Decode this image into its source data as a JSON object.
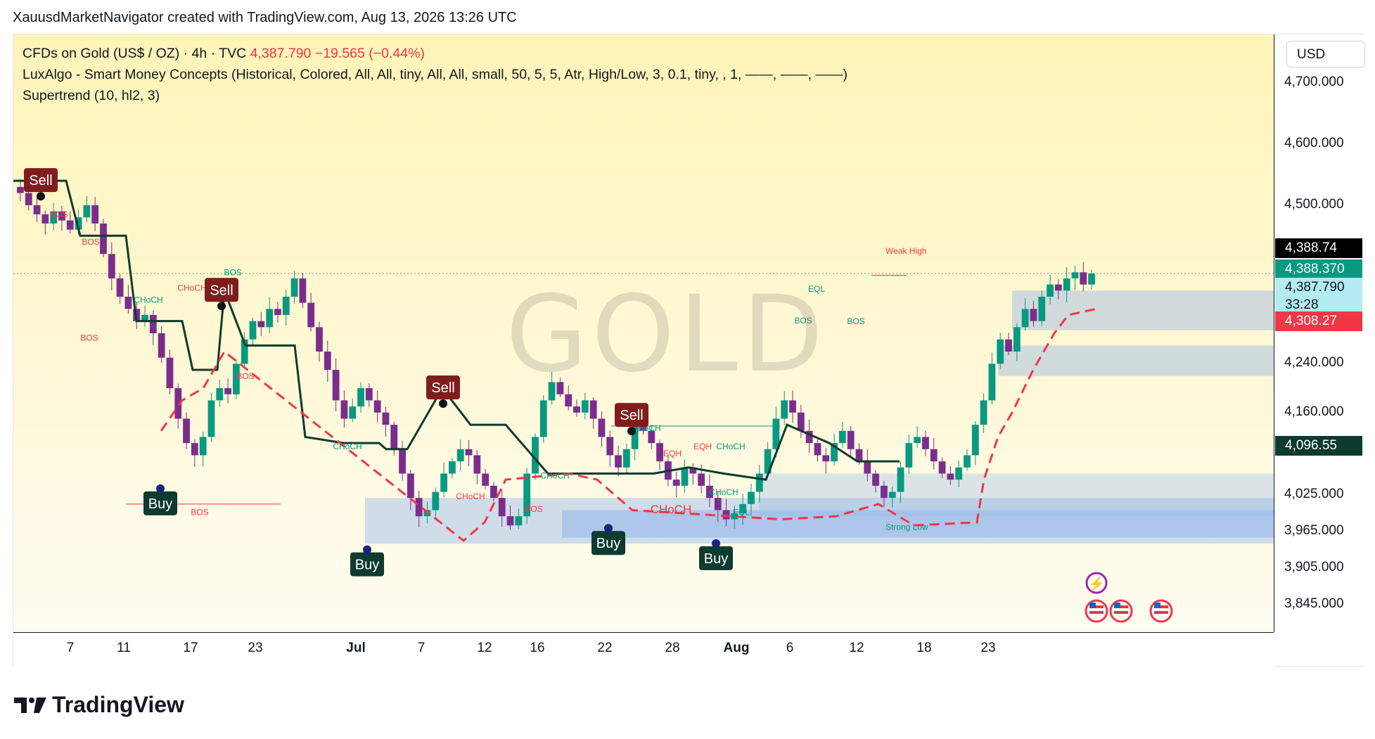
{
  "header": {
    "text": "XauusdMarketNavigator created with TradingView.com, Aug 13, 2026 13:26 UTC"
  },
  "legend": {
    "line1_symbol": "CFDs on Gold (US$ / OZ) · 4h · TVC",
    "line1_price": "4,387.790",
    "line1_change": "−19.565 (−0.44%)",
    "line2": "LuxAlgo - Smart Money Concepts (Historical, Colored, All, All, tiny, All, All, small, 50, 5, 5, Atr, High/Low, 3, 0.1, tiny, , 1, ——, ——, ——)",
    "line3": "Supertrend (10, hl2, 3)"
  },
  "watermark": "GOLD",
  "currency_button": "USD",
  "colors": {
    "up": "#089981",
    "down": "#f23645",
    "candle": "#7b2d8e",
    "supertrend_down": "#0d3b2e",
    "supertrend_up": "#f23645",
    "bos_bear": "#f23645",
    "bos_bull": "#089981"
  },
  "chart_data": {
    "type": "candlestick",
    "title": "CFDs on Gold (US$ / OZ) · 4h · TVC",
    "ylim": [
      3800,
      4780
    ],
    "y_ticks": [
      "4,700.000",
      "4,600.000",
      "4,500.000",
      "4,240.000",
      "4,160.000",
      "4,025.000",
      "3,965.000",
      "3,905.000",
      "3,845.000"
    ],
    "x_ticks": [
      {
        "label": "7",
        "bold": false
      },
      {
        "label": "11",
        "bold": false
      },
      {
        "label": "17",
        "bold": false
      },
      {
        "label": "23",
        "bold": false
      },
      {
        "label": "Jul",
        "bold": true
      },
      {
        "label": "7",
        "bold": false
      },
      {
        "label": "12",
        "bold": false
      },
      {
        "label": "16",
        "bold": false
      },
      {
        "label": "22",
        "bold": false
      },
      {
        "label": "28",
        "bold": false
      },
      {
        "label": "Aug",
        "bold": true
      },
      {
        "label": "6",
        "bold": false
      },
      {
        "label": "12",
        "bold": false
      },
      {
        "label": "18",
        "bold": false
      },
      {
        "label": "23",
        "bold": false
      }
    ],
    "price_badges": [
      {
        "label": "4,388.74",
        "bg": "#000000"
      },
      {
        "label": "4,388.370",
        "bg": "#089981"
      },
      {
        "label": "4,387.790",
        "sub": "33:28",
        "bg": "#b2ebf2",
        "fg": "#131722"
      },
      {
        "label": "4,308.27",
        "bg": "#f23645"
      },
      {
        "label": "4,096.55",
        "bg": "#0d3b2e"
      }
    ],
    "close_series": [
      4520,
      4500,
      4485,
      4470,
      4490,
      4475,
      4460,
      4480,
      4500,
      4470,
      4420,
      4380,
      4350,
      4330,
      4310,
      4320,
      4290,
      4250,
      4200,
      4150,
      4110,
      4090,
      4120,
      4180,
      4200,
      4190,
      4240,
      4280,
      4310,
      4300,
      4330,
      4320,
      4350,
      4380,
      4340,
      4300,
      4260,
      4230,
      4180,
      4150,
      4170,
      4200,
      4180,
      4160,
      4140,
      4100,
      4060,
      4020,
      3990,
      4000,
      4030,
      4060,
      4080,
      4100,
      4090,
      4060,
      4040,
      4020,
      3990,
      3975,
      3990,
      4060,
      4120,
      4180,
      4210,
      4190,
      4170,
      4160,
      4180,
      4150,
      4120,
      4090,
      4070,
      4100,
      4140,
      4130,
      4110,
      4080,
      4050,
      4040,
      4070,
      4060,
      4040,
      4020,
      4000,
      3985,
      3995,
      4010,
      4030,
      4060,
      4100,
      4150,
      4180,
      4160,
      4130,
      4110,
      4090,
      4080,
      4110,
      4130,
      4100,
      4080,
      4060,
      4040,
      4020,
      4030,
      4070,
      4110,
      4120,
      4100,
      4080,
      4060,
      4050,
      4070,
      4090,
      4140,
      4180,
      4240,
      4280,
      4260,
      4300,
      4330,
      4310,
      4350,
      4370,
      4360,
      4380,
      4390,
      4370,
      4388
    ],
    "signals": [
      {
        "type": "Sell",
        "label": "Sell"
      },
      {
        "type": "Buy",
        "label": "Buy"
      },
      {
        "type": "Sell",
        "label": "Sell"
      },
      {
        "type": "Buy",
        "label": "Buy"
      },
      {
        "type": "Sell",
        "label": "Sell"
      },
      {
        "type": "Buy",
        "label": "Buy"
      },
      {
        "type": "Sell",
        "label": "Sell"
      },
      {
        "type": "Buy",
        "label": "Buy"
      }
    ],
    "structure_labels": [
      "BOS",
      "BOS",
      "BOS",
      "CHoCH",
      "CHoCH",
      "BOS",
      "BOS",
      "BOS",
      "CHoCH",
      "CHoCH",
      "CHoCH",
      "BOS",
      "CHoCH",
      "CHoCH",
      "EQH",
      "EQH",
      "CHoCH",
      "CHoCH",
      "EQL",
      "BOS",
      "BOS",
      "EQL",
      "BOS"
    ],
    "zone_labels": [
      "Weak High",
      "Strong Low"
    ]
  },
  "footer": {
    "brand": "TradingView"
  }
}
